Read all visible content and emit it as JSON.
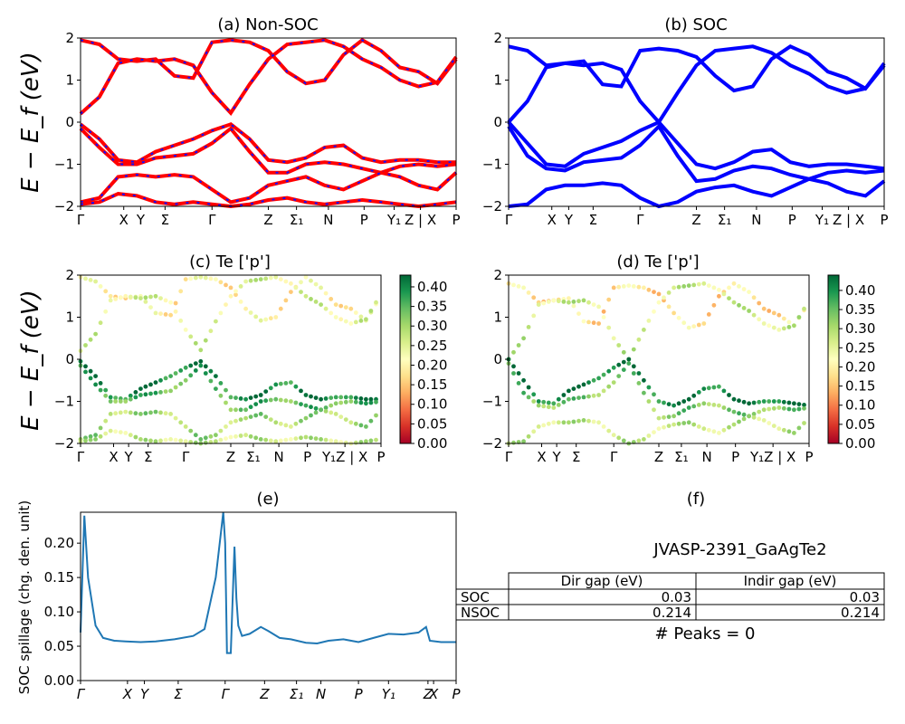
{
  "panels": {
    "a": {
      "title": "(a) Non-SOC",
      "ylabel": "E − E_f (eV)",
      "ylim": [
        -2,
        2
      ],
      "yticks": [
        "2",
        "1",
        "0",
        "−1",
        "−2"
      ],
      "xticks": [
        "Γ",
        "X",
        "Y",
        "Σ",
        "Γ",
        "Z",
        "Σ₁",
        "N",
        "P",
        "Y₁",
        "Z | X",
        "P"
      ]
    },
    "b": {
      "title": "(b) SOC",
      "ylim": [
        -2,
        2
      ],
      "yticks": [
        "2",
        "1",
        "0",
        "−1",
        "−2"
      ],
      "xticks": [
        "Γ",
        "X",
        "Y",
        "Σ",
        "Γ",
        "Z",
        "Σ₁",
        "N",
        "P",
        "Y₁",
        "Z | X",
        "P"
      ]
    },
    "c": {
      "title": "(c)  Te ['p']",
      "ylabel": "E − E_f (eV)",
      "ylim": [
        -2,
        2
      ],
      "yticks": [
        "2",
        "1",
        "0",
        "−1",
        "−2"
      ],
      "xticks": [
        "Γ",
        "X",
        "Y",
        "Σ",
        "Γ",
        "Z",
        "Σ₁",
        "N",
        "P",
        "Y₁Z | X",
        "P"
      ],
      "colorbar_ticks": [
        "0.40",
        "0.35",
        "0.30",
        "0.25",
        "0.20",
        "0.15",
        "0.10",
        "0.05",
        "0.00"
      ]
    },
    "d": {
      "title": "(d) Te ['p']",
      "ylim": [
        -2,
        2
      ],
      "yticks": [
        "2",
        "1",
        "0",
        "−1",
        "−2"
      ],
      "xticks": [
        "Γ",
        "X",
        "Y",
        "Σ",
        "Γ",
        "Z",
        "Σ₁",
        "N",
        "P",
        "Y₁Z | X",
        "P"
      ],
      "colorbar_ticks": [
        "0.40",
        "0.35",
        "0.30",
        "0.25",
        "0.20",
        "0.15",
        "0.10",
        "0.05",
        "0.00"
      ]
    },
    "e": {
      "title": "(e)",
      "ylabel": "SOC spillage (chg. den. unit)",
      "yticks": [
        "0.20",
        "0.15",
        "0.10",
        "0.05",
        "0.00"
      ],
      "xticks": [
        "Γ",
        "X",
        "Y",
        "Σ",
        "Γ",
        "Z",
        "Σ₁",
        "N",
        "P",
        "Y₁",
        "Z",
        "X",
        "P"
      ]
    },
    "f": {
      "title": "(f)",
      "material": "JVASP-2391_GaAgTe2",
      "table": {
        "headers": [
          "Dir gap (eV)",
          "Indir gap (eV)"
        ],
        "rows": [
          {
            "label": "SOC",
            "dir": "0.03",
            "indir": "0.03"
          },
          {
            "label": "NSOC",
            "dir": "0.214",
            "indir": "0.214"
          }
        ]
      },
      "peaks": "# Peaks = 0"
    }
  },
  "chart_data": [
    {
      "type": "line",
      "title": "(a) Non-SOC",
      "ylabel": "E − E_f (eV)",
      "ylim": [
        -2,
        2
      ],
      "x": [
        0,
        1,
        2,
        3,
        4,
        5,
        6,
        7,
        8,
        9,
        10,
        11,
        12,
        13,
        14,
        15,
        16,
        17,
        18,
        19,
        20
      ],
      "series": [
        {
          "values": [
            1.95,
            1.85,
            1.5,
            1.45,
            1.5,
            1.1,
            1.05,
            1.9,
            1.95,
            1.9,
            1.7,
            1.2,
            0.92,
            1.0,
            1.6,
            1.95,
            1.7,
            1.3,
            1.2,
            0.92,
            1.5
          ]
        },
        {
          "values": [
            0.2,
            0.6,
            1.4,
            1.5,
            1.45,
            1.5,
            1.35,
            0.7,
            0.22,
            0.9,
            1.5,
            1.85,
            1.9,
            1.95,
            1.8,
            1.5,
            1.3,
            1.0,
            0.85,
            0.95,
            1.55
          ]
        },
        {
          "values": [
            -0.05,
            -0.4,
            -0.9,
            -0.95,
            -0.7,
            -0.55,
            -0.4,
            -0.2,
            -0.05,
            -0.4,
            -0.9,
            -0.95,
            -0.85,
            -0.6,
            -0.55,
            -0.85,
            -0.95,
            -0.9,
            -0.9,
            -0.95,
            -0.95
          ]
        },
        {
          "values": [
            -0.15,
            -0.6,
            -1.0,
            -1.0,
            -0.85,
            -0.8,
            -0.75,
            -0.5,
            -0.15,
            -0.7,
            -1.2,
            -1.2,
            -1.0,
            -0.95,
            -1.0,
            -1.1,
            -1.2,
            -1.05,
            -1.0,
            -1.05,
            -1.0
          ]
        },
        {
          "values": [
            -1.9,
            -1.8,
            -1.3,
            -1.25,
            -1.3,
            -1.25,
            -1.3,
            -1.6,
            -1.9,
            -1.8,
            -1.5,
            -1.4,
            -1.3,
            -1.5,
            -1.6,
            -1.4,
            -1.2,
            -1.3,
            -1.5,
            -1.6,
            -1.2
          ]
        },
        {
          "values": [
            -1.95,
            -1.9,
            -1.7,
            -1.75,
            -1.9,
            -1.95,
            -1.9,
            -1.95,
            -2.0,
            -1.95,
            -1.85,
            -1.8,
            -1.9,
            -1.95,
            -1.9,
            -1.85,
            -1.9,
            -1.95,
            -2.0,
            -1.95,
            -1.9
          ]
        }
      ]
    },
    {
      "type": "line",
      "title": "(b) SOC",
      "ylim": [
        -2,
        2
      ],
      "x": [
        0,
        1,
        2,
        3,
        4,
        5,
        6,
        7,
        8,
        9,
        10,
        11,
        12,
        13,
        14,
        15,
        16,
        17,
        18,
        19,
        20
      ],
      "series": [
        {
          "values": [
            1.8,
            1.7,
            1.35,
            1.4,
            1.45,
            0.9,
            0.85,
            1.7,
            1.75,
            1.7,
            1.55,
            1.1,
            0.75,
            0.85,
            1.5,
            1.8,
            1.6,
            1.2,
            1.05,
            0.8,
            1.35
          ]
        },
        {
          "values": [
            0.0,
            0.5,
            1.3,
            1.4,
            1.35,
            1.4,
            1.25,
            0.5,
            0.0,
            0.7,
            1.35,
            1.7,
            1.75,
            1.8,
            1.65,
            1.35,
            1.15,
            0.85,
            0.7,
            0.8,
            1.4
          ]
        },
        {
          "values": [
            0.0,
            -0.5,
            -1.0,
            -1.05,
            -0.75,
            -0.6,
            -0.45,
            -0.2,
            0.0,
            -0.5,
            -1.0,
            -1.1,
            -0.95,
            -0.7,
            -0.65,
            -0.95,
            -1.05,
            -1.0,
            -1.0,
            -1.05,
            -1.1
          ]
        },
        {
          "values": [
            -0.1,
            -0.8,
            -1.1,
            -1.15,
            -0.95,
            -0.9,
            -0.85,
            -0.55,
            -0.1,
            -0.8,
            -1.4,
            -1.35,
            -1.15,
            -1.05,
            -1.1,
            -1.25,
            -1.35,
            -1.2,
            -1.15,
            -1.2,
            -1.15
          ]
        },
        {
          "values": [
            -2.0,
            -1.95,
            -1.6,
            -1.5,
            -1.5,
            -1.45,
            -1.5,
            -1.8,
            -2.0,
            -1.9,
            -1.65,
            -1.55,
            -1.5,
            -1.65,
            -1.75,
            -1.55,
            -1.35,
            -1.45,
            -1.65,
            -1.75,
            -1.4
          ]
        }
      ]
    },
    {
      "type": "scatter",
      "title": "(c)  Te ['p']",
      "ylim": [
        -2,
        2
      ],
      "colorbar_range": [
        0.0,
        0.43
      ],
      "x": [
        0,
        1,
        2,
        3,
        4,
        5,
        6,
        7,
        8,
        9,
        10,
        11,
        12,
        13,
        14,
        15,
        16,
        17,
        18,
        19,
        20
      ],
      "series": [
        {
          "values": [
            1.95,
            1.85,
            1.5,
            1.45,
            1.5,
            1.1,
            1.05,
            1.9,
            1.95,
            1.9,
            1.7,
            1.2,
            0.92,
            1.0,
            1.6,
            1.95,
            1.7,
            1.3,
            1.2,
            0.92,
            1.5
          ],
          "weight": 0.2
        },
        {
          "values": [
            0.2,
            0.6,
            1.4,
            1.5,
            1.45,
            1.5,
            1.35,
            0.7,
            0.22,
            0.9,
            1.5,
            1.85,
            1.9,
            1.95,
            1.8,
            1.5,
            1.3,
            1.0,
            0.85,
            0.95,
            1.55
          ],
          "weight": 0.25
        },
        {
          "values": [
            -0.05,
            -0.4,
            -0.9,
            -0.95,
            -0.7,
            -0.55,
            -0.4,
            -0.2,
            -0.05,
            -0.4,
            -0.9,
            -0.95,
            -0.85,
            -0.6,
            -0.55,
            -0.85,
            -0.95,
            -0.9,
            -0.9,
            -0.95,
            -0.95
          ],
          "weight": 0.4
        },
        {
          "values": [
            -0.15,
            -0.6,
            -1.0,
            -1.0,
            -0.85,
            -0.8,
            -0.75,
            -0.5,
            -0.15,
            -0.7,
            -1.2,
            -1.2,
            -1.0,
            -0.95,
            -1.0,
            -1.1,
            -1.2,
            -1.05,
            -1.0,
            -1.05,
            -1.0
          ],
          "weight": 0.35
        },
        {
          "values": [
            -1.9,
            -1.8,
            -1.3,
            -1.25,
            -1.3,
            -1.25,
            -1.3,
            -1.6,
            -1.9,
            -1.8,
            -1.5,
            -1.4,
            -1.3,
            -1.5,
            -1.6,
            -1.4,
            -1.2,
            -1.3,
            -1.5,
            -1.6,
            -1.2
          ],
          "weight": 0.3
        },
        {
          "values": [
            -1.95,
            -1.9,
            -1.7,
            -1.75,
            -1.9,
            -1.95,
            -1.9,
            -1.95,
            -2.0,
            -1.95,
            -1.85,
            -1.8,
            -1.9,
            -1.95,
            -1.9,
            -1.85,
            -1.9,
            -1.95,
            -2.0,
            -1.95,
            -1.9
          ],
          "weight": 0.27
        }
      ]
    },
    {
      "type": "scatter",
      "title": "(d) Te ['p']",
      "ylim": [
        -2,
        2
      ],
      "colorbar_range": [
        0.0,
        0.44
      ],
      "x": [
        0,
        1,
        2,
        3,
        4,
        5,
        6,
        7,
        8,
        9,
        10,
        11,
        12,
        13,
        14,
        15,
        16,
        17,
        18,
        19,
        20
      ],
      "series": [
        {
          "values": [
            1.8,
            1.7,
            1.35,
            1.4,
            1.45,
            0.9,
            0.85,
            1.7,
            1.75,
            1.7,
            1.55,
            1.1,
            0.75,
            0.85,
            1.5,
            1.8,
            1.6,
            1.2,
            1.05,
            0.8,
            1.35
          ],
          "weight": 0.18
        },
        {
          "values": [
            0.0,
            0.5,
            1.3,
            1.4,
            1.35,
            1.4,
            1.25,
            0.5,
            0.0,
            0.7,
            1.35,
            1.7,
            1.75,
            1.8,
            1.65,
            1.35,
            1.15,
            0.85,
            0.7,
            0.8,
            1.4
          ],
          "weight": 0.27
        },
        {
          "values": [
            0.0,
            -0.5,
            -1.0,
            -1.05,
            -0.75,
            -0.6,
            -0.45,
            -0.2,
            0.0,
            -0.5,
            -1.0,
            -1.1,
            -0.95,
            -0.7,
            -0.65,
            -0.95,
            -1.05,
            -1.0,
            -1.0,
            -1.05,
            -1.1
          ],
          "weight": 0.42
        },
        {
          "values": [
            -0.1,
            -0.8,
            -1.1,
            -1.15,
            -0.95,
            -0.9,
            -0.85,
            -0.55,
            -0.1,
            -0.8,
            -1.4,
            -1.35,
            -1.15,
            -1.05,
            -1.1,
            -1.25,
            -1.35,
            -1.2,
            -1.15,
            -1.2,
            -1.15
          ],
          "weight": 0.33
        },
        {
          "values": [
            -2.0,
            -1.95,
            -1.6,
            -1.5,
            -1.5,
            -1.45,
            -1.5,
            -1.8,
            -2.0,
            -1.9,
            -1.65,
            -1.55,
            -1.5,
            -1.65,
            -1.75,
            -1.55,
            -1.35,
            -1.45,
            -1.65,
            -1.75,
            -1.4
          ],
          "weight": 0.28
        }
      ]
    },
    {
      "type": "line",
      "title": "(e)",
      "ylabel": "SOC spillage (chg. den. unit)",
      "ylim": [
        0.0,
        0.245
      ],
      "color": "#1f77b4",
      "x": [
        0,
        0.01,
        0.02,
        0.04,
        0.06,
        0.09,
        0.12,
        0.16,
        0.2,
        0.25,
        0.3,
        0.33,
        0.36,
        0.38,
        0.385,
        0.39,
        0.4,
        0.405,
        0.41,
        0.415,
        0.42,
        0.43,
        0.45,
        0.48,
        0.5,
        0.53,
        0.56,
        0.6,
        0.63,
        0.66,
        0.7,
        0.74,
        0.78,
        0.82,
        0.86,
        0.9,
        0.92,
        0.93,
        0.96,
        1.0
      ],
      "values": [
        0.07,
        0.24,
        0.15,
        0.08,
        0.062,
        0.058,
        0.057,
        0.056,
        0.057,
        0.06,
        0.065,
        0.075,
        0.15,
        0.245,
        0.2,
        0.04,
        0.04,
        0.12,
        0.195,
        0.12,
        0.08,
        0.065,
        0.068,
        0.078,
        0.072,
        0.062,
        0.06,
        0.055,
        0.054,
        0.058,
        0.06,
        0.056,
        0.062,
        0.068,
        0.067,
        0.07,
        0.078,
        0.058,
        0.056,
        0.056
      ]
    }
  ]
}
